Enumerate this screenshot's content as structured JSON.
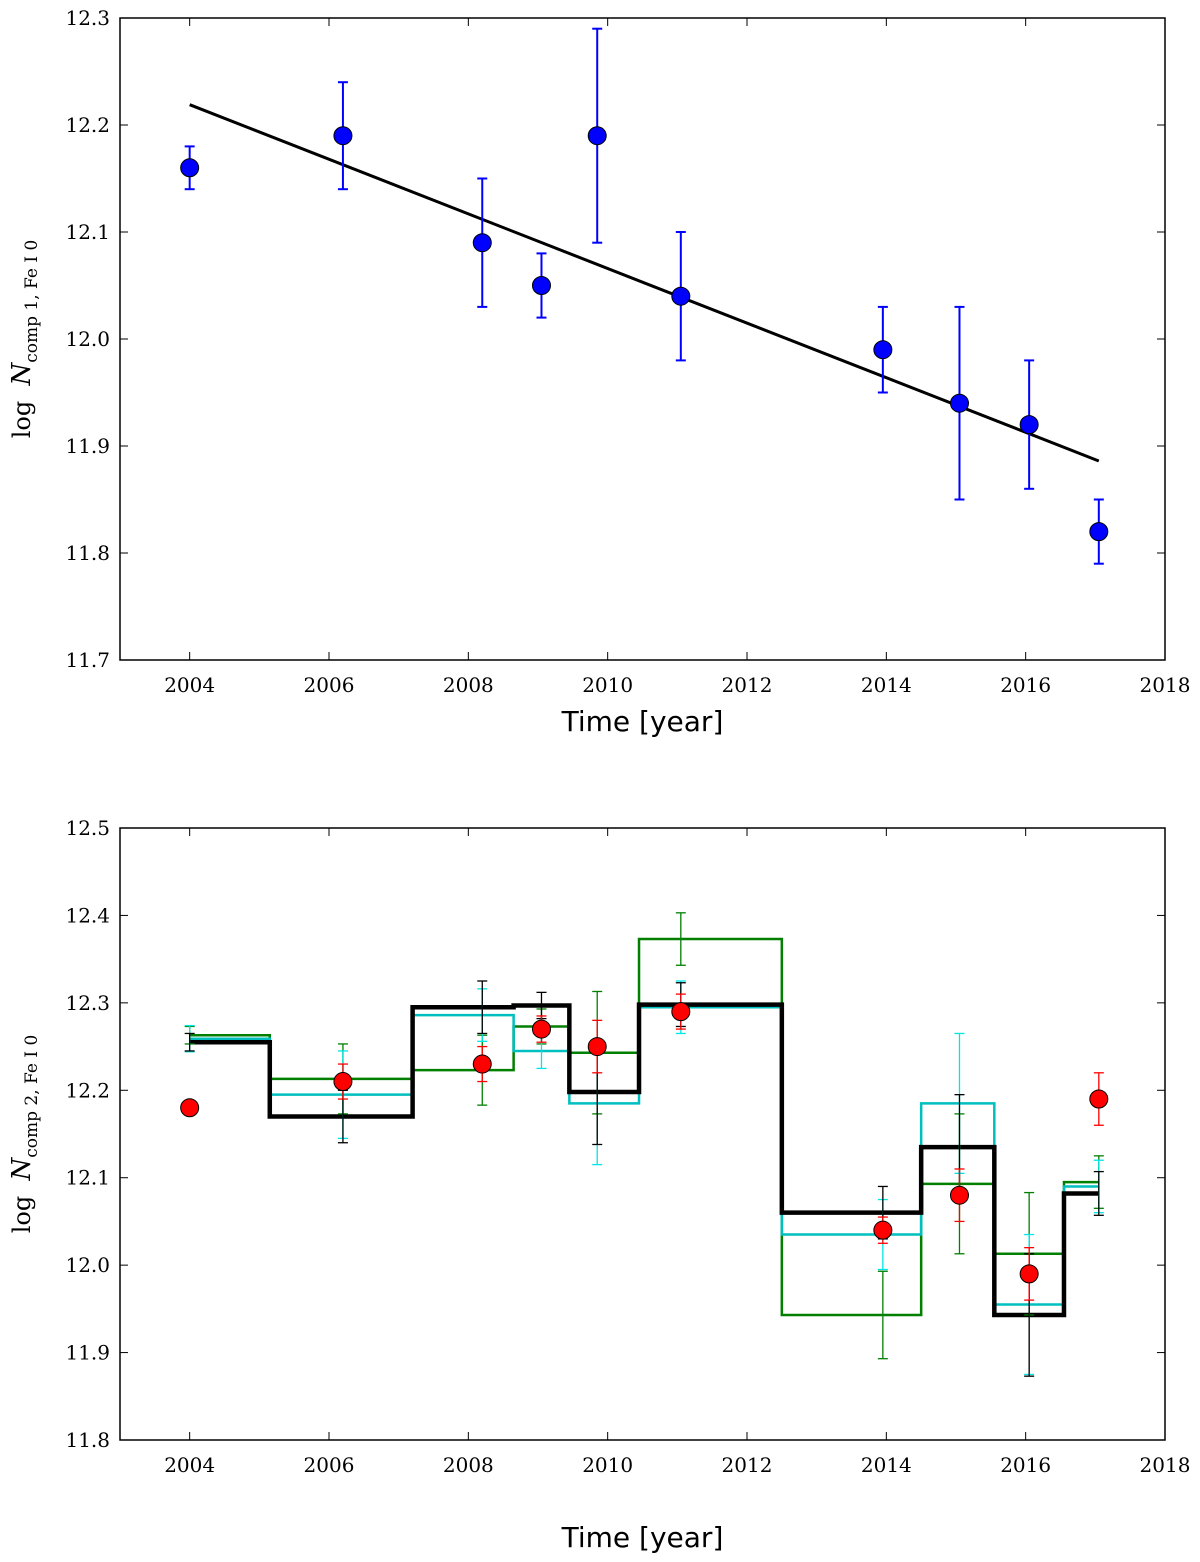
{
  "chart_data": [
    {
      "type": "scatter",
      "xlabel": "Time [year]",
      "ylabel": {
        "prefix": "log ",
        "var": "N",
        "sub": "comp 1, Fe I 0"
      },
      "xlim": [
        2003,
        2018
      ],
      "ylim": [
        11.7,
        12.3
      ],
      "xticks": [
        "2004",
        "2006",
        "2008",
        "2010",
        "2012",
        "2014",
        "2016",
        "2018"
      ],
      "yticks": [
        "11.7",
        "11.8",
        "11.9",
        "12.0",
        "12.1",
        "12.2",
        "12.3"
      ],
      "colors": {
        "points": "#0000ff",
        "fit": "#000000"
      },
      "series": [
        {
          "name": "measurements",
          "x": [
            2004.0,
            2006.2,
            2008.2,
            2009.05,
            2009.85,
            2011.05,
            2013.95,
            2015.05,
            2016.05,
            2017.05
          ],
          "y": [
            12.16,
            12.19,
            12.09,
            12.05,
            12.19,
            12.04,
            11.99,
            11.94,
            11.92,
            11.82
          ],
          "err": [
            0.02,
            0.05,
            0.06,
            0.03,
            0.1,
            0.06,
            0.04,
            0.09,
            0.06,
            0.03
          ]
        }
      ],
      "fit_line": {
        "x": [
          2004.0,
          2017.05
        ],
        "y": [
          12.219,
          11.886
        ]
      }
    },
    {
      "type": "scatter",
      "xlabel": "Time [year]",
      "ylabel": {
        "prefix": "log ",
        "var": "N",
        "sub": "comp 2, Fe I 0"
      },
      "xlim": [
        2003,
        2018
      ],
      "ylim": [
        11.8,
        12.5
      ],
      "xticks": [
        "2004",
        "2006",
        "2008",
        "2010",
        "2012",
        "2014",
        "2016",
        "2018"
      ],
      "yticks": [
        "11.8",
        "11.9",
        "12.0",
        "12.1",
        "12.2",
        "12.3",
        "12.4",
        "12.5"
      ],
      "colors": {
        "points": "#ff0000",
        "green": "#007f00",
        "cyan": "#00bfbf",
        "black": "#000000"
      },
      "points": {
        "x": [
          2004.0,
          2006.2,
          2008.2,
          2009.05,
          2009.85,
          2011.05,
          2013.95,
          2015.05,
          2016.05,
          2017.05
        ],
        "y": [
          12.18,
          12.21,
          12.23,
          12.27,
          12.25,
          12.29,
          12.04,
          12.08,
          11.99,
          12.19
        ],
        "err": [
          0.0,
          0.02,
          0.02,
          0.015,
          0.03,
          0.02,
          0.015,
          0.03,
          0.03,
          0.03
        ]
      },
      "step_series": [
        {
          "name": "green",
          "edges": [
            2004.0,
            2005.15,
            2007.2,
            2008.65,
            2009.45,
            2010.45,
            2012.5,
            2014.5,
            2015.55,
            2016.55,
            2017.05
          ],
          "values": [
            12.263,
            12.213,
            12.223,
            12.273,
            12.243,
            12.373,
            11.943,
            12.093,
            12.013,
            12.095
          ],
          "err_x": [
            2004.0,
            2006.2,
            2008.2,
            2009.05,
            2009.85,
            2011.05,
            2013.95,
            2015.05,
            2016.05,
            2017.05
          ],
          "err": [
            0.01,
            0.04,
            0.04,
            0.02,
            0.07,
            0.03,
            0.05,
            0.08,
            0.07,
            0.03
          ]
        },
        {
          "name": "cyan",
          "edges": [
            2004.0,
            2005.15,
            2007.2,
            2008.65,
            2009.45,
            2010.45,
            2012.5,
            2014.5,
            2015.55,
            2016.55,
            2017.05
          ],
          "values": [
            12.259,
            12.195,
            12.286,
            12.245,
            12.185,
            12.295,
            12.035,
            12.185,
            11.955,
            12.09
          ],
          "err_x": [
            2004.0,
            2006.2,
            2008.2,
            2009.05,
            2009.85,
            2011.05,
            2013.95,
            2015.05,
            2016.05,
            2017.05
          ],
          "err": [
            0.015,
            0.05,
            0.03,
            0.02,
            0.07,
            0.03,
            0.04,
            0.08,
            0.08,
            0.03
          ]
        },
        {
          "name": "black",
          "edges": [
            2004.0,
            2005.15,
            2007.2,
            2008.65,
            2009.45,
            2010.45,
            2012.5,
            2014.5,
            2015.55,
            2016.55,
            2017.05
          ],
          "values": [
            12.255,
            12.17,
            12.295,
            12.297,
            12.198,
            12.298,
            12.06,
            12.135,
            11.943,
            12.082
          ],
          "err_x": [
            2004.0,
            2006.2,
            2008.2,
            2009.05,
            2009.85,
            2011.05,
            2013.95,
            2015.05,
            2016.05,
            2017.05
          ],
          "err": [
            0.01,
            0.03,
            0.03,
            0.015,
            0.06,
            0.025,
            0.03,
            0.06,
            0.07,
            0.025
          ]
        }
      ]
    }
  ]
}
